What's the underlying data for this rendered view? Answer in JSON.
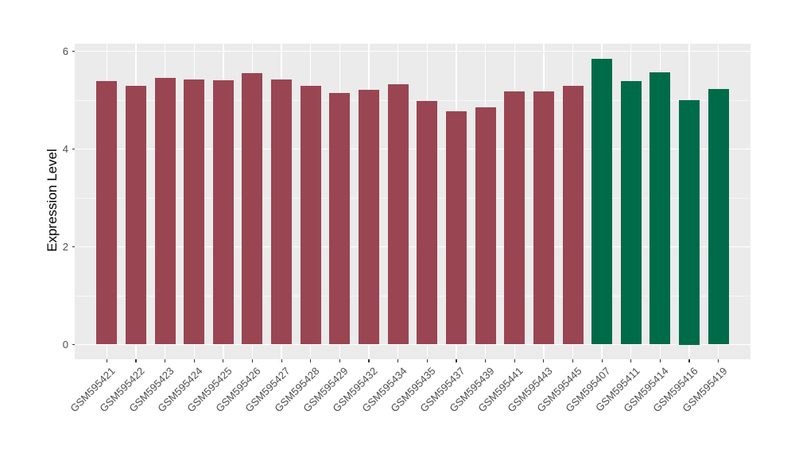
{
  "colors": {
    "background": "#FFFFFF",
    "panel_bg": "#EBEBEB",
    "grid_major": "#FFFFFF",
    "grid_minor": "rgba(255,255,255,0.6)",
    "tick_mark": "#333333",
    "tick_text": "#4D4D4D",
    "axis_title_text": "#000000",
    "bar_red": "#9A4552",
    "bar_green": "#006B49"
  },
  "chart_data": {
    "type": "bar",
    "title": "",
    "xlabel": "",
    "ylabel": "Expression Level",
    "ylim": [
      -0.3,
      6.16
    ],
    "yticks": [
      0,
      2,
      4,
      6
    ],
    "yticks_minor": [
      1,
      3,
      5
    ],
    "grid": true,
    "legend_position": "none",
    "categories": [
      "GSM595421",
      "GSM595422",
      "GSM595423",
      "GSM595424",
      "GSM595425",
      "GSM595426",
      "GSM595427",
      "GSM595428",
      "GSM595429",
      "GSM595432",
      "GSM595434",
      "GSM595435",
      "GSM595437",
      "GSM595439",
      "GSM595441",
      "GSM595443",
      "GSM595445",
      "GSM595407",
      "GSM595411",
      "GSM595414",
      "GSM595416",
      "GSM595419"
    ],
    "values": [
      5.39,
      5.29,
      5.45,
      5.43,
      5.4,
      5.55,
      5.42,
      5.29,
      5.14,
      5.21,
      5.33,
      4.98,
      4.77,
      4.85,
      5.18,
      5.18,
      5.3,
      5.84,
      5.39,
      5.57,
      5.0,
      5.23
    ],
    "bar_colors": [
      "#9A4552",
      "#9A4552",
      "#9A4552",
      "#9A4552",
      "#9A4552",
      "#9A4552",
      "#9A4552",
      "#9A4552",
      "#9A4552",
      "#9A4552",
      "#9A4552",
      "#9A4552",
      "#9A4552",
      "#9A4552",
      "#9A4552",
      "#9A4552",
      "#9A4552",
      "#006B49",
      "#006B49",
      "#006B49",
      "#006B49",
      "#006B49"
    ]
  }
}
